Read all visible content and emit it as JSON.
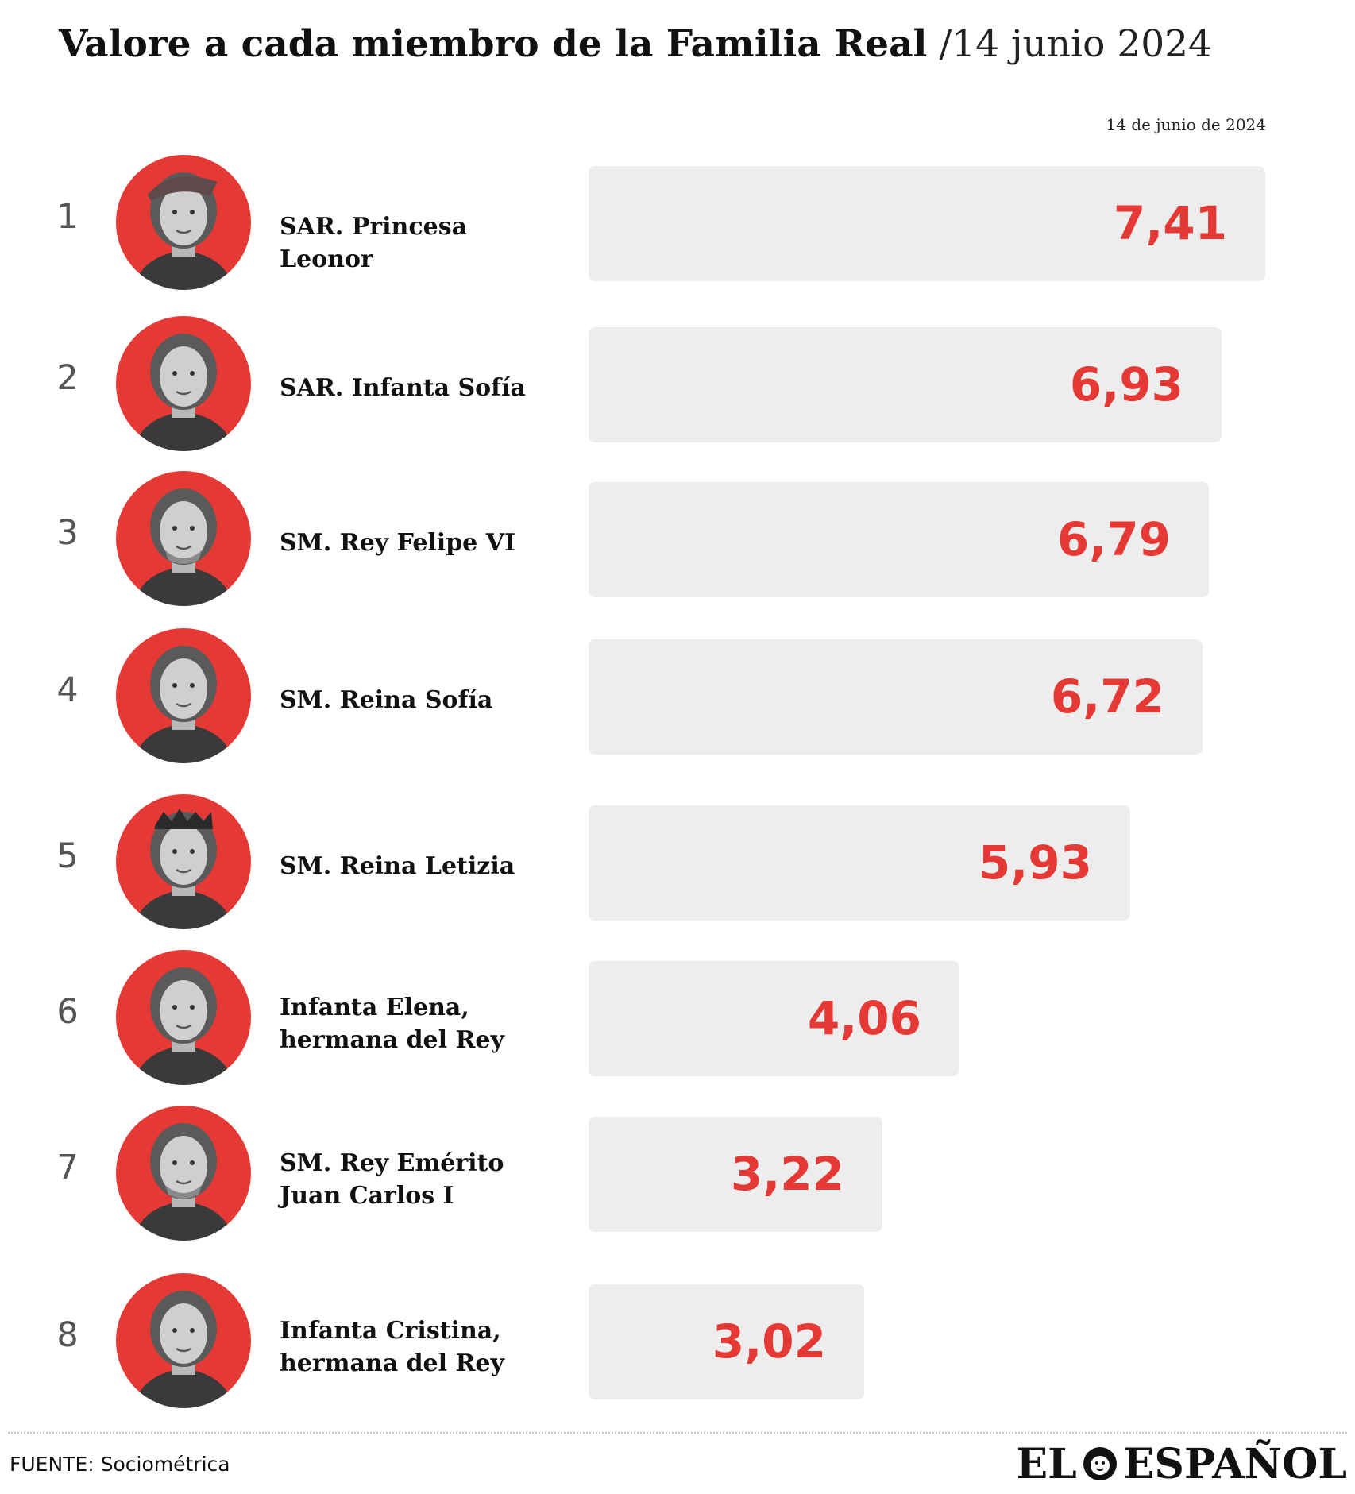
{
  "title": {
    "main": "Valore a cada miembro de la Familia Real",
    "date": "/14 junio 2024"
  },
  "date_label": "14 de junio de 2024",
  "chart_data": {
    "type": "bar",
    "orientation": "horizontal",
    "title": "Valore a cada miembro de la Familia Real",
    "subtitle": "/14 junio 2024",
    "series_label": "14 de junio de 2024",
    "categories": [
      "SAR. Princesa Leonor",
      "SAR. Infanta Sofía",
      "SM. Rey Felipe VI",
      "SM. Reina Sofía",
      "SM. Reina Letizia",
      "Infanta Elena, hermana del Rey",
      "SM. Rey Emérito Juan Carlos I",
      "Infanta Cristina, hermana del Rey"
    ],
    "values": [
      7.41,
      6.93,
      6.79,
      6.72,
      5.93,
      4.06,
      3.22,
      3.02
    ],
    "xlim": [
      0,
      7.41
    ],
    "grid": false,
    "bar_color": "#ededed",
    "value_color": "#e53935"
  },
  "rows": [
    {
      "rank": "1",
      "name_lines": [
        "SAR. Princesa Leonor"
      ],
      "value_label": "7,41",
      "value": 7.41,
      "photo": "portrait-leonor"
    },
    {
      "rank": "2",
      "name_lines": [
        "SAR. Infanta Sofía"
      ],
      "value_label": "6,93",
      "value": 6.93,
      "photo": "portrait-sofia"
    },
    {
      "rank": "3",
      "name_lines": [
        "SM. Rey Felipe VI"
      ],
      "value_label": "6,79",
      "value": 6.79,
      "photo": "portrait-felipe"
    },
    {
      "rank": "4",
      "name_lines": [
        "SM. Reina Sofía"
      ],
      "value_label": "6,72",
      "value": 6.72,
      "photo": "portrait-reina-sofia"
    },
    {
      "rank": "5",
      "name_lines": [
        "SM. Reina Letizia"
      ],
      "value_label": "5,93",
      "value": 5.93,
      "photo": "portrait-letizia"
    },
    {
      "rank": "6",
      "name_lines": [
        "Infanta Elena,",
        "hermana del Rey"
      ],
      "value_label": "4,06",
      "value": 4.06,
      "photo": "portrait-elena"
    },
    {
      "rank": "7",
      "name_lines": [
        "SM. Rey Emérito",
        "Juan Carlos I"
      ],
      "value_label": "3,22",
      "value": 3.22,
      "photo": "portrait-juan-carlos"
    },
    {
      "rank": "8",
      "name_lines": [
        "Infanta Cristina,",
        "hermana del Rey"
      ],
      "value_label": "3,02",
      "value": 3.02,
      "photo": "portrait-cristina"
    }
  ],
  "source": "FUENTE: Sociométrica",
  "logo": {
    "left": "EL",
    "right": "ESPAÑOL",
    "icon": "lion-head-icon"
  },
  "colors": {
    "accent": "#e53935",
    "bar": "#ededed",
    "text": "#111111"
  }
}
